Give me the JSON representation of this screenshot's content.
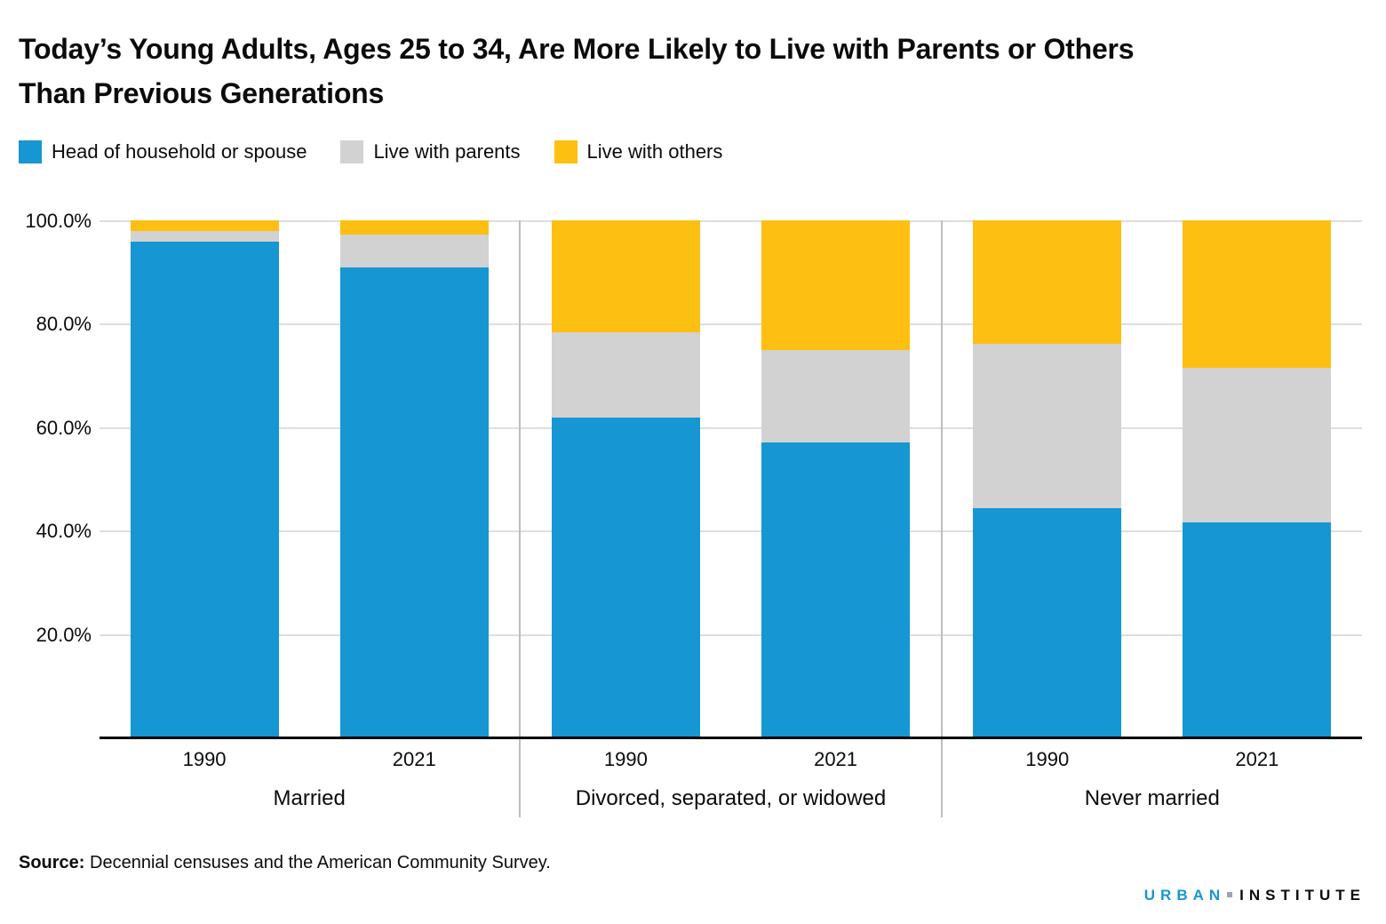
{
  "title": "Today’s Young Adults, Ages 25 to 34, Are More Likely to Live with Parents or Others\nThan Previous Generations",
  "source": {
    "label": "Source:",
    "text": " Decennial censuses and the American Community Survey."
  },
  "logo": {
    "part1": "URBAN",
    "part2": "INSTITUTE",
    "accent_color": "#1696d2"
  },
  "chart_data": {
    "type": "bar",
    "stacked": true,
    "title": "Today’s Young Adults, Ages 25 to 34, Are More Likely to Live with Parents or Others Than Previous Generations",
    "xlabel": "",
    "ylabel": "",
    "ylim": [
      0,
      100
    ],
    "grid": true,
    "legend_position": "top-left",
    "group_labels": [
      "Married",
      "Divorced, separated, or widowed",
      "Never married"
    ],
    "bars_per_group": 2,
    "categories": [
      "1990",
      "2021",
      "1990",
      "2021",
      "1990",
      "2021"
    ],
    "series": [
      {
        "name": "Head of household or spouse",
        "key": "head",
        "color": "#1696d2",
        "values": [
          95.8,
          90.9,
          61.8,
          57.1,
          44.4,
          41.6
        ]
      },
      {
        "name": "Live with parents",
        "key": "parents",
        "color": "#d2d2d2",
        "values": [
          2.2,
          6.3,
          16.5,
          17.8,
          31.7,
          29.9
        ]
      },
      {
        "name": "Live with others",
        "key": "others",
        "color": "#fdbf11",
        "values": [
          2.0,
          2.8,
          21.7,
          25.1,
          23.9,
          28.5
        ]
      }
    ],
    "y_ticks": [
      {
        "label": "100.0%",
        "value": 100
      },
      {
        "label": "80.0%",
        "value": 80
      },
      {
        "label": "60.0%",
        "value": 60
      },
      {
        "label": "40.0%",
        "value": 40
      },
      {
        "label": "20.0%",
        "value": 20
      }
    ]
  }
}
